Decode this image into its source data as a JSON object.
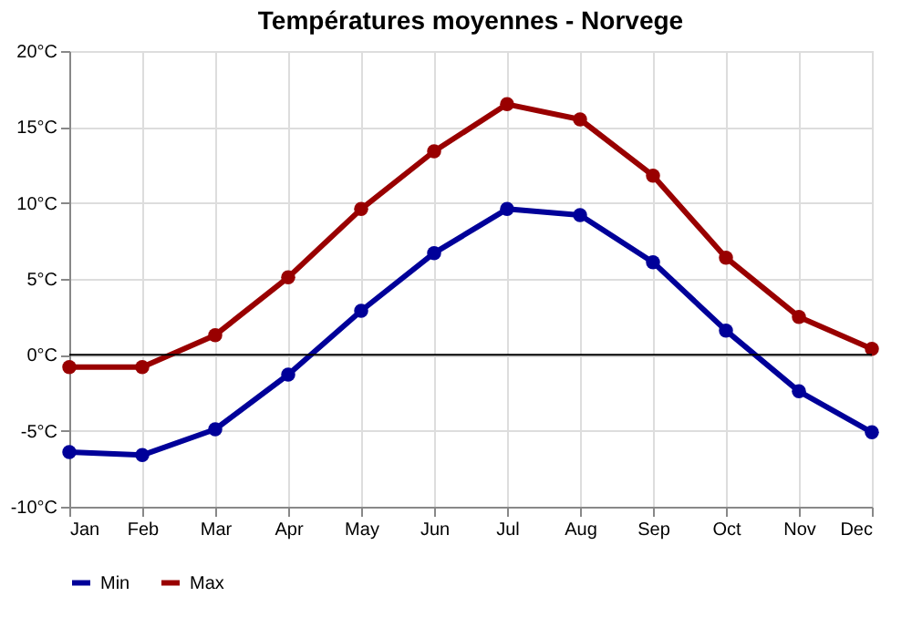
{
  "chart_data": {
    "type": "line",
    "title": "Températures moyennes - Norvege",
    "categories": [
      "Jan",
      "Feb",
      "Mar",
      "Apr",
      "May",
      "Jun",
      "Jul",
      "Aug",
      "Sep",
      "Oct",
      "Nov",
      "Dec"
    ],
    "series": [
      {
        "name": "Min",
        "color": "#000099",
        "values": [
          -6.4,
          -6.6,
          -4.9,
          -1.3,
          2.9,
          6.7,
          9.6,
          9.2,
          6.1,
          1.6,
          -2.4,
          -5.1
        ]
      },
      {
        "name": "Max",
        "color": "#990000",
        "values": [
          -0.8,
          -0.8,
          1.3,
          5.1,
          9.6,
          13.4,
          16.5,
          15.5,
          11.8,
          6.4,
          2.5,
          0.4
        ]
      }
    ],
    "ylim": [
      -10,
      20
    ],
    "yticks": [
      {
        "value": -10,
        "label": "-10°C"
      },
      {
        "value": -5,
        "label": "-5°C"
      },
      {
        "value": 0,
        "label": "0°C"
      },
      {
        "value": 5,
        "label": "5°C"
      },
      {
        "value": 10,
        "label": "10°C"
      },
      {
        "value": 15,
        "label": "15°C"
      },
      {
        "value": 20,
        "label": "20°C"
      }
    ],
    "ref_lines": [
      {
        "axis": "y",
        "value": 0,
        "color": "#000000"
      }
    ],
    "grid": true,
    "legend": "bottom left",
    "marker": "circle",
    "line_style": "solid"
  }
}
